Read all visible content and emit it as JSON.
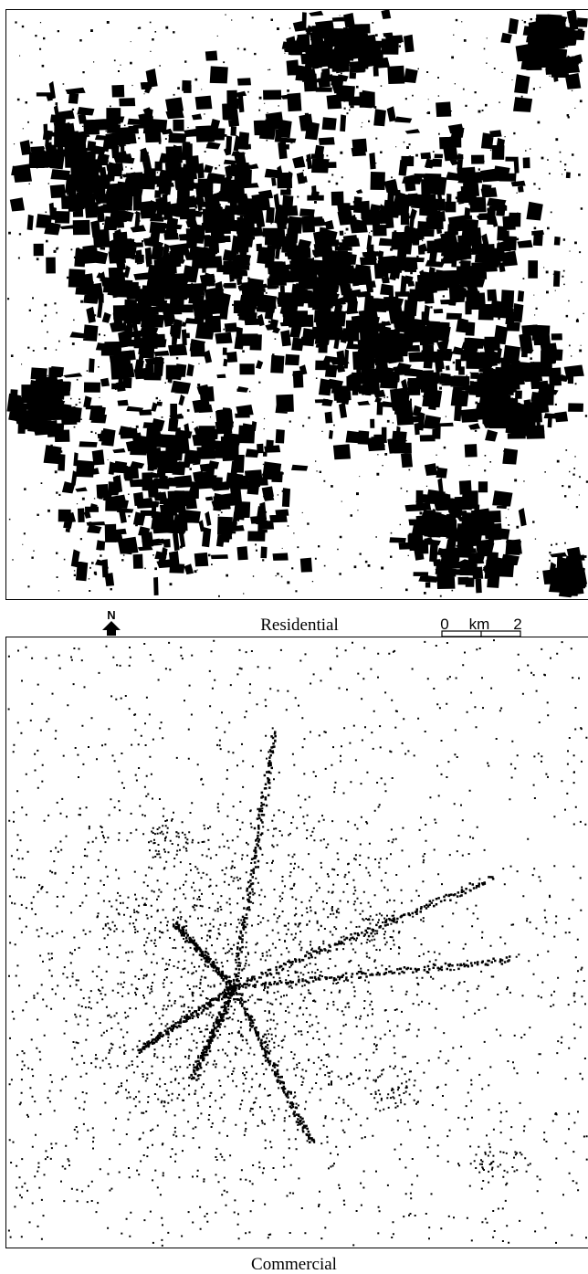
{
  "panels": [
    {
      "label": "Residential"
    },
    {
      "label": "Commercial"
    }
  ],
  "north_arrow": {
    "label": "N"
  },
  "scale_bar": {
    "start": "0",
    "unit": "km",
    "end": "2"
  }
}
